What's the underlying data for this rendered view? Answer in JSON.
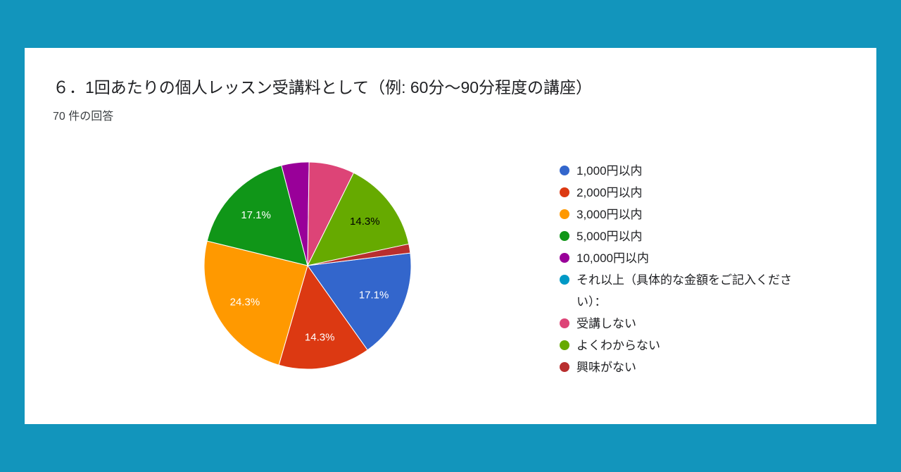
{
  "page": {
    "background_color": "#1295BC",
    "card_color": "#FFFFFF"
  },
  "header": {
    "title": "６．1回あたりの個人レッスン受講料として（例: 60分～90分程度の講座）",
    "response_count": "70 件の回答"
  },
  "chart_data": {
    "type": "pie",
    "title": "６．1回あたりの個人レッスン受講料として（例: 60分～90分程度の講座）",
    "total_responses": 70,
    "start_angle_deg": 83,
    "legend_position": "right",
    "slices": [
      {
        "label": "1,000円以内",
        "percent": 17.1,
        "display": "17.1%",
        "color": "#3366CC",
        "label_color": "#FFFFFF"
      },
      {
        "label": "2,000円以内",
        "percent": 14.3,
        "display": "14.3%",
        "color": "#DC3912",
        "label_color": "#FFFFFF"
      },
      {
        "label": "3,000円以内",
        "percent": 24.3,
        "display": "24.3%",
        "color": "#FF9900",
        "label_color": "#FFFFFF"
      },
      {
        "label": "5,000円以内",
        "percent": 17.1,
        "display": "17.1%",
        "color": "#109618",
        "label_color": "#FFFFFF"
      },
      {
        "label": "10,000円以内",
        "percent": 4.3,
        "display": "",
        "color": "#990099",
        "label_color": "#FFFFFF"
      },
      {
        "label": "それ以上（具体的な金額をご記入ください）：",
        "percent": 0,
        "display": "",
        "color": "#0099C6",
        "label_color": "#FFFFFF"
      },
      {
        "label": "受講しない",
        "percent": 7.1,
        "display": "",
        "color": "#DD4477",
        "label_color": "#FFFFFF"
      },
      {
        "label": "よくわからない",
        "percent": 14.3,
        "display": "14.3%",
        "color": "#66AA00",
        "label_color": "#000000"
      },
      {
        "label": "興味がない",
        "percent": 1.4,
        "display": "",
        "color": "#B82E2E",
        "label_color": "#FFFFFF"
      }
    ]
  }
}
